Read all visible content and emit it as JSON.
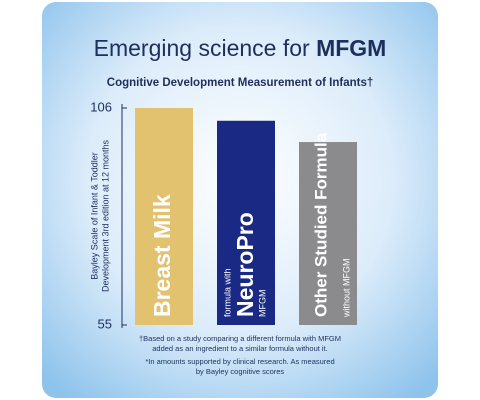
{
  "chart_data": {
    "type": "bar",
    "title": "Emerging science for",
    "title_emphasis": "MFGM",
    "subtitle": "Cognitive Development Measurement of Infants†",
    "y_label_lines": [
      "Bayley Scale of Infant & Toddler",
      "Development 3rd edition at 12 months"
    ],
    "categories": [
      "Breast Milk",
      "NeuroPro",
      "Other Studied Formula"
    ],
    "category_prefixes": [
      null,
      "formula with",
      null
    ],
    "category_suffixes": [
      null,
      "MFGM",
      "without MFGM"
    ],
    "values": [
      106,
      103,
      98
    ],
    "colors": [
      "#e3c26f",
      "#1a2a84",
      "#8b8b8d"
    ],
    "ylim": [
      55,
      106
    ],
    "yticks": [
      55,
      106
    ],
    "footnotes": [
      [
        "†Based on a study comparing a different formula with MFGM",
        "added as an ingredient to a similar formula without it."
      ],
      [
        "*In amounts supported by clinical research. As measured",
        "by Bayley cognitive scores"
      ]
    ]
  }
}
